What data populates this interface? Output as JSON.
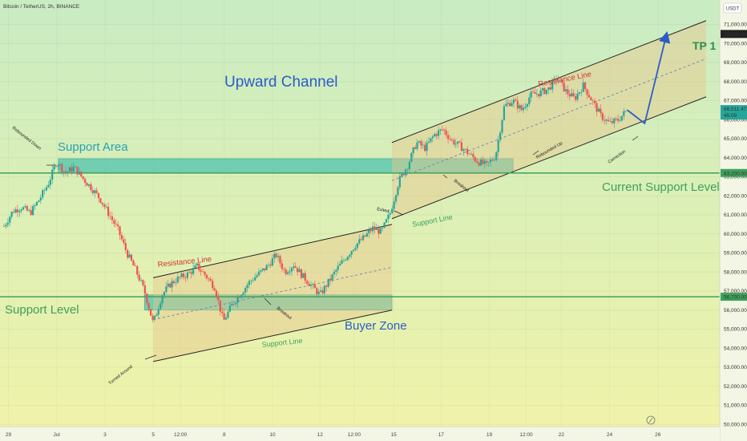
{
  "chart_data": {
    "type": "candlestick",
    "title": "Bitcoin / TetherUS, 2h, BINANCE",
    "currency": "USDT",
    "ylim": [
      50000,
      71500
    ],
    "yticks": [
      50000,
      51000,
      52000,
      53000,
      54000,
      55000,
      56000,
      57000,
      58000,
      59000,
      60000,
      61000,
      62000,
      63000,
      64000,
      65000,
      66000,
      67000,
      68000,
      69000,
      70000,
      71000
    ],
    "ytick_labels": [
      "50,000.00",
      "51,000.00",
      "52,000.00",
      "53,000.00",
      "54,000.00",
      "55,000.00",
      "56,000.00",
      "57,000.00",
      "58,000.00",
      "59,000.00",
      "60,000.00",
      "61,000.00",
      "62,000.00",
      "63,000.00",
      "64,000.00",
      "65,000.00",
      "66,000.00",
      "67,000.00",
      "68,000.00",
      "69,000.00",
      "70,000.00",
      "71,000.00"
    ],
    "xticks": [
      {
        "label": "29",
        "t": 0.5
      },
      {
        "label": "Jul",
        "t": 6.0
      },
      {
        "label": "3",
        "t": 11.5
      },
      {
        "label": "5",
        "t": 17.0
      },
      {
        "label": "12:00",
        "t": 20.1
      },
      {
        "label": "8",
        "t": 25.1
      },
      {
        "label": "10",
        "t": 30.6
      },
      {
        "label": "12",
        "t": 36.0
      },
      {
        "label": "12:00",
        "t": 39.9
      },
      {
        "label": "15",
        "t": 44.4
      },
      {
        "label": "17",
        "t": 49.8
      },
      {
        "label": "19",
        "t": 55.3
      },
      {
        "label": "12:00",
        "t": 59.5
      },
      {
        "label": "22",
        "t": 63.5
      },
      {
        "label": "24",
        "t": 69.0
      },
      {
        "label": "26",
        "t": 74.5
      }
    ],
    "price_points": [
      [
        0,
        60400
      ],
      [
        1,
        61200
      ],
      [
        2,
        61400
      ],
      [
        3,
        61100
      ],
      [
        4,
        61800
      ],
      [
        5,
        62600
      ],
      [
        6,
        63800
      ],
      [
        7,
        63200
      ],
      [
        8,
        63500
      ],
      [
        9,
        62900
      ],
      [
        10,
        62400
      ],
      [
        11,
        61800
      ],
      [
        12,
        61000
      ],
      [
        13,
        60200
      ],
      [
        14,
        59000
      ],
      [
        15,
        58100
      ],
      [
        16,
        57000
      ],
      [
        17,
        55300
      ],
      [
        18,
        56800
      ],
      [
        19,
        57400
      ],
      [
        20,
        57700
      ],
      [
        21,
        57900
      ],
      [
        22,
        58300
      ],
      [
        23,
        57800
      ],
      [
        24,
        57200
      ],
      [
        25,
        55400
      ],
      [
        26,
        56300
      ],
      [
        27,
        56900
      ],
      [
        28,
        57500
      ],
      [
        29,
        57900
      ],
      [
        30,
        58300
      ],
      [
        31,
        58900
      ],
      [
        32,
        58000
      ],
      [
        33,
        58400
      ],
      [
        34,
        57800
      ],
      [
        35,
        57300
      ],
      [
        36,
        56800
      ],
      [
        37,
        57500
      ],
      [
        38,
        58200
      ],
      [
        39,
        58800
      ],
      [
        40,
        59400
      ],
      [
        41,
        59800
      ],
      [
        42,
        60300
      ],
      [
        43,
        60100
      ],
      [
        44,
        61100
      ],
      [
        45,
        62800
      ],
      [
        46,
        63600
      ],
      [
        47,
        64800
      ],
      [
        48,
        64500
      ],
      [
        49,
        65200
      ],
      [
        50,
        65500
      ],
      [
        51,
        64900
      ],
      [
        52,
        64600
      ],
      [
        53,
        64200
      ],
      [
        54,
        63800
      ],
      [
        55,
        63600
      ],
      [
        56,
        64100
      ],
      [
        57,
        66700
      ],
      [
        58,
        67000
      ],
      [
        59,
        66500
      ],
      [
        60,
        67300
      ],
      [
        61,
        67400
      ],
      [
        62,
        67600
      ],
      [
        63,
        68200
      ],
      [
        64,
        67500
      ],
      [
        65,
        67100
      ],
      [
        66,
        67800
      ],
      [
        67,
        67000
      ],
      [
        68,
        66200
      ],
      [
        69,
        65800
      ],
      [
        70,
        66000
      ],
      [
        71,
        66511
      ]
    ],
    "projection": [
      [
        71,
        66511
      ],
      [
        73.0,
        65800
      ],
      [
        75.5,
        70500
      ]
    ],
    "horizontal_levels": [
      {
        "price": 63200,
        "label": "63,200.00",
        "color": "#3fa05c"
      },
      {
        "price": 56700,
        "label": "56,700.00",
        "color": "#3fa05c"
      }
    ],
    "current_price": {
      "value": "66,511.47",
      "countdown": "45:09",
      "price": 66511.47
    },
    "tp_price": {
      "value": "70,500.00",
      "price": 70500
    },
    "zones": [
      {
        "name": "Support Area",
        "t0": 6.2,
        "t1": 58.0,
        "p0": 63200,
        "p1": 63950
      },
      {
        "name": "Buyer Zone",
        "t0": 16.0,
        "t1": 44.2,
        "p0": 56000,
        "p1": 56800
      }
    ],
    "channels": [
      {
        "name": "lower channel",
        "upper": [
          [
            17.0,
            57700
          ],
          [
            44.2,
            60500
          ]
        ],
        "lower": [
          [
            17.0,
            53300
          ],
          [
            44.2,
            56000
          ]
        ]
      },
      {
        "name": "upper channel",
        "upper": [
          [
            44.2,
            64800
          ],
          [
            80.0,
            71200
          ]
        ],
        "lower": [
          [
            44.2,
            60800
          ],
          [
            80.0,
            67200
          ]
        ]
      }
    ],
    "annotations": {
      "channel_title": "Upward Channel",
      "support_area": "Support Area",
      "support_level": "Support Level",
      "current_support_level": "Current Support Level",
      "buyer_zone": "Buyer Zone",
      "tp1": "TP 1",
      "resistance_line_1": "Resistance Line",
      "resistance_line_2": "Resistance Line",
      "support_line_1": "Support Line",
      "support_line_2": "Support Line",
      "rebounded_down": "Rebounded Down",
      "turned_around": "Turned Around",
      "breakout_1": "Breakout",
      "breakout_2": "Breakout",
      "exited": "Exited",
      "rebounded_up": "Rebounded Up",
      "correction": "Correction"
    }
  }
}
